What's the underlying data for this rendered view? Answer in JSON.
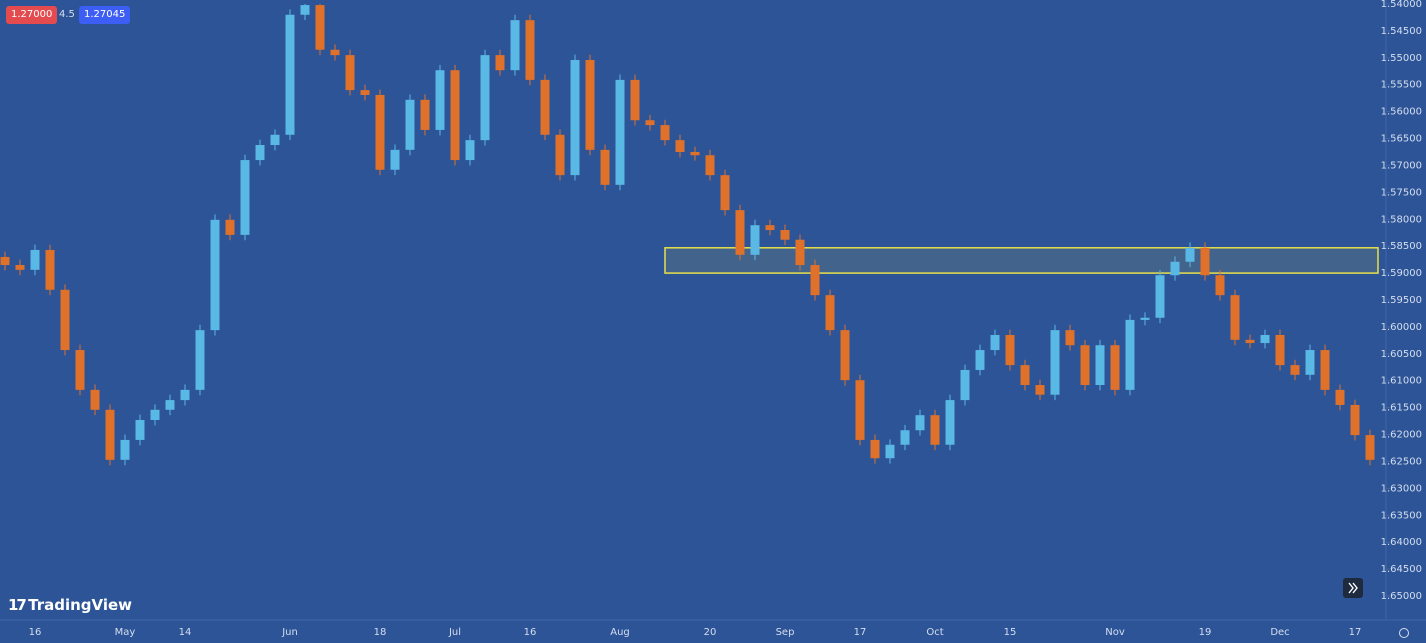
{
  "toolbar": {
    "bid": "1.27000",
    "spread": "4.5",
    "ask": "1.27045"
  },
  "logo": "TradingView",
  "chart_data": {
    "type": "candlestick",
    "categories": [
      null,
      null,
      "16",
      null,
      null,
      null,
      null,
      null,
      "May",
      null,
      null,
      null,
      "14",
      null,
      null,
      null,
      null,
      null,
      null,
      "Jun",
      null,
      null,
      null,
      null,
      null,
      "18",
      null,
      null,
      null,
      null,
      "Jul",
      null,
      null,
      null,
      null,
      "16",
      null,
      null,
      null,
      null,
      null,
      "Aug",
      null,
      null,
      null,
      null,
      null,
      "20",
      null,
      null,
      null,
      null,
      "Sep",
      null,
      null,
      null,
      null,
      "17",
      null,
      null,
      null,
      null,
      "Oct",
      null,
      null,
      null,
      null,
      "15",
      null,
      null,
      null,
      null,
      null,
      null,
      "Nov",
      null,
      null,
      null,
      null,
      null,
      "19",
      null,
      null,
      null,
      null,
      "Dec",
      null,
      null,
      null,
      null,
      "17",
      null
    ],
    "open": [
      1.587,
      1.5885,
      1.5894,
      1.5857,
      1.5931,
      1.6043,
      1.6117,
      1.6154,
      1.6247,
      1.621,
      1.6173,
      1.6154,
      1.6136,
      1.6117,
      1.6006,
      1.5801,
      1.5829,
      1.569,
      1.5662,
      1.5643,
      1.542,
      1.5402,
      1.5485,
      1.5495,
      1.556,
      1.5569,
      1.5708,
      1.5671,
      1.5578,
      1.5634,
      1.5523,
      1.569,
      1.5653,
      1.5495,
      1.5523,
      1.543,
      1.5541,
      1.5643,
      1.5718,
      1.5504,
      1.5671,
      1.5736,
      1.5541,
      1.5616,
      1.5625,
      1.5653,
      1.5675,
      1.5681,
      1.5718,
      1.5783,
      1.5866,
      1.5811,
      1.582,
      1.5838,
      1.5885,
      1.5941,
      1.6006,
      1.6099,
      1.621,
      1.6244,
      1.6219,
      1.6192,
      1.6164,
      1.6219,
      1.6136,
      1.608,
      1.6043,
      1.6015,
      1.6071,
      1.6108,
      1.6126,
      1.6006,
      1.6034,
      1.6108,
      1.6034,
      1.6117,
      1.5987,
      1.5983,
      1.5904,
      1.5879,
      1.5853,
      1.5904,
      1.5941,
      1.6024,
      1.603,
      1.6015,
      1.6071,
      1.6089,
      1.6043,
      1.6117,
      1.6145,
      1.6201
    ],
    "high": [
      1.5895,
      1.5904,
      1.5904,
      1.5941,
      1.6053,
      1.6127,
      1.6164,
      1.6257,
      1.6257,
      1.622,
      1.6183,
      1.6164,
      1.6146,
      1.6127,
      1.6016,
      1.5839,
      1.5839,
      1.57,
      1.5672,
      1.5653,
      1.543,
      1.5495,
      1.5505,
      1.557,
      1.5579,
      1.5718,
      1.5718,
      1.5681,
      1.5644,
      1.5644,
      1.57,
      1.57,
      1.5663,
      1.5533,
      1.5533,
      1.5551,
      1.5653,
      1.5728,
      1.5728,
      1.5681,
      1.5746,
      1.5746,
      1.5626,
      1.5635,
      1.5663,
      1.5685,
      1.5691,
      1.5728,
      1.5793,
      1.5876,
      1.5876,
      1.583,
      1.5848,
      1.5895,
      1.5951,
      1.6016,
      1.6109,
      1.622,
      1.6254,
      1.6254,
      1.6229,
      1.6202,
      1.6229,
      1.6229,
      1.6146,
      1.609,
      1.6053,
      1.6081,
      1.6118,
      1.6136,
      1.6136,
      1.6044,
      1.6118,
      1.6118,
      1.6127,
      1.6127,
      1.5997,
      1.5993,
      1.5914,
      1.5889,
      1.5914,
      1.5951,
      1.6034,
      1.604,
      1.604,
      1.6081,
      1.6099,
      1.6099,
      1.6127,
      1.6155,
      1.6211,
      1.6257
    ],
    "low": [
      1.586,
      1.5875,
      1.5847,
      1.5847,
      1.5921,
      1.6033,
      1.6107,
      1.6144,
      1.62,
      1.6163,
      1.6144,
      1.6126,
      1.6107,
      1.5996,
      1.5791,
      1.5791,
      1.568,
      1.5652,
      1.5633,
      1.541,
      1.54,
      1.54,
      1.5475,
      1.5485,
      1.555,
      1.5559,
      1.5661,
      1.5568,
      1.5568,
      1.5513,
      1.5513,
      1.5643,
      1.5485,
      1.5485,
      1.542,
      1.542,
      1.5531,
      1.5633,
      1.5494,
      1.5494,
      1.5661,
      1.5531,
      1.5531,
      1.5606,
      1.5615,
      1.5643,
      1.5665,
      1.5671,
      1.5708,
      1.5773,
      1.5801,
      1.5801,
      1.581,
      1.5828,
      1.5875,
      1.5931,
      1.5996,
      1.6089,
      1.62,
      1.6209,
      1.6182,
      1.6154,
      1.6154,
      1.6126,
      1.607,
      1.6033,
      1.6005,
      1.6005,
      1.6061,
      1.6098,
      1.5996,
      1.5996,
      1.6024,
      1.6024,
      1.6024,
      1.5977,
      1.5973,
      1.5894,
      1.5869,
      1.5843,
      1.5843,
      1.5894,
      1.5931,
      1.6014,
      1.6005,
      1.6005,
      1.6061,
      1.6033,
      1.6033,
      1.6107,
      1.6135,
      1.6191
    ],
    "close": [
      1.5885,
      1.5894,
      1.5857,
      1.5931,
      1.6043,
      1.6117,
      1.6154,
      1.6247,
      1.621,
      1.6173,
      1.6154,
      1.6136,
      1.6117,
      1.6006,
      1.5801,
      1.5829,
      1.569,
      1.5662,
      1.5643,
      1.542,
      1.5402,
      1.5485,
      1.5495,
      1.556,
      1.5569,
      1.5708,
      1.5671,
      1.5578,
      1.5634,
      1.5523,
      1.569,
      1.5653,
      1.5495,
      1.5523,
      1.543,
      1.5541,
      1.5643,
      1.5718,
      1.5504,
      1.5671,
      1.5736,
      1.5541,
      1.5616,
      1.5625,
      1.5653,
      1.5675,
      1.5681,
      1.5718,
      1.5783,
      1.5866,
      1.5811,
      1.582,
      1.5838,
      1.5885,
      1.5941,
      1.6006,
      1.6099,
      1.621,
      1.6244,
      1.6219,
      1.6192,
      1.6164,
      1.6219,
      1.6136,
      1.608,
      1.6043,
      1.6015,
      1.6071,
      1.6108,
      1.6126,
      1.6006,
      1.6034,
      1.6108,
      1.6034,
      1.6117,
      1.5987,
      1.5983,
      1.5904,
      1.5879,
      1.5853,
      1.5904,
      1.5941,
      1.6024,
      1.603,
      1.6015,
      1.6071,
      1.6089,
      1.6043,
      1.6117,
      1.6145,
      1.6201,
      1.6247
    ],
    "up_color": "#e0712b",
    "down_color": "#5ab8e4",
    "ylim": [
      1.54,
      1.65
    ],
    "y_inverted": true,
    "grid": false,
    "yticks": [
      {
        "value": 1.54,
        "label": "1.54000"
      },
      {
        "value": 1.545,
        "label": "1.54500"
      },
      {
        "value": 1.55,
        "label": "1.55000"
      },
      {
        "value": 1.555,
        "label": "1.55500"
      },
      {
        "value": 1.56,
        "label": "1.56000"
      },
      {
        "value": 1.565,
        "label": "1.56500"
      },
      {
        "value": 1.57,
        "label": "1.57000"
      },
      {
        "value": 1.575,
        "label": "1.57500"
      },
      {
        "value": 1.58,
        "label": "1.58000"
      },
      {
        "value": 1.585,
        "label": "1.58500"
      },
      {
        "value": 1.59,
        "label": "1.59000"
      },
      {
        "value": 1.595,
        "label": "1.59500"
      },
      {
        "value": 1.6,
        "label": "1.60000"
      },
      {
        "value": 1.605,
        "label": "1.60500"
      },
      {
        "value": 1.61,
        "label": "1.61000"
      },
      {
        "value": 1.615,
        "label": "1.61500"
      },
      {
        "value": 1.62,
        "label": "1.62000"
      },
      {
        "value": 1.625,
        "label": "1.62500"
      },
      {
        "value": 1.63,
        "label": "1.63000"
      },
      {
        "value": 1.635,
        "label": "1.63500"
      },
      {
        "value": 1.64,
        "label": "1.64000"
      },
      {
        "value": 1.645,
        "label": "1.64500"
      },
      {
        "value": 1.65,
        "label": "1.65000"
      }
    ],
    "zone": [
      1.5853,
      1.59
    ],
    "zone_color": "#e8e04a"
  }
}
